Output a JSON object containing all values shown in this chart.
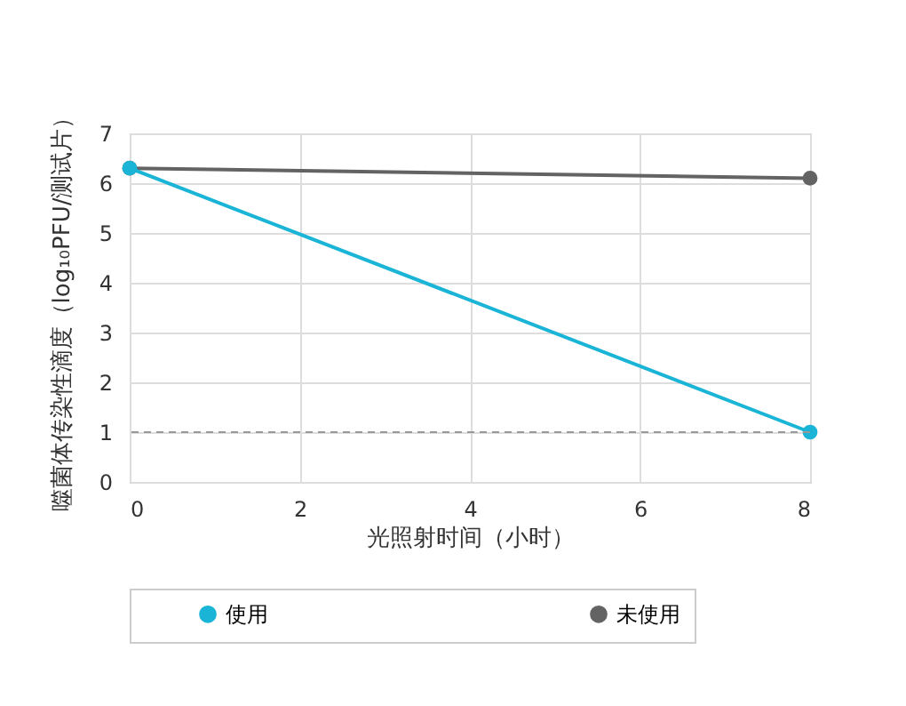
{
  "chart_data": {
    "type": "line",
    "xlabel": "光照射时间（小时）",
    "ylabel": "噬菌体传染性滴度（log₁₀PFU/测试片）",
    "x": [
      0,
      8
    ],
    "series": [
      {
        "name": "使用",
        "color": "#1ab4d7",
        "values": [
          6.3,
          1.0
        ]
      },
      {
        "name": "未使用",
        "color": "#636363",
        "values": [
          6.3,
          6.1
        ]
      }
    ],
    "xlim": [
      0,
      8
    ],
    "xticks": [
      0,
      2,
      4,
      6,
      8
    ],
    "ylim": [
      0,
      7
    ],
    "yticks": [
      0,
      1,
      2,
      3,
      4,
      5,
      6,
      7
    ],
    "ref_lines": [
      {
        "axis": "y",
        "value": 1,
        "color": "#999999",
        "line_style": "dashed"
      }
    ],
    "grid": true,
    "legend": "bottom",
    "marker": "circle",
    "line_style": "solid"
  }
}
